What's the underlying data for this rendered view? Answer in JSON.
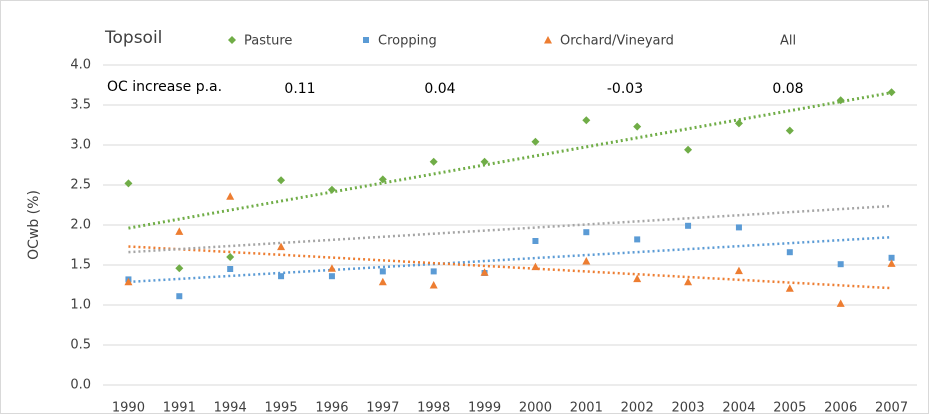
{
  "chart_data": {
    "type": "scatter",
    "title": "Topsoil",
    "y_label": "OCwb (%)",
    "annotation": "OC increase p.a.",
    "categories": [
      "1990",
      "1991",
      "1994",
      "1995",
      "1996",
      "1997",
      "1998",
      "1999",
      "2000",
      "2001",
      "2002",
      "2003",
      "2004",
      "2005",
      "2006",
      "2007"
    ],
    "series": [
      {
        "name": "Pasture",
        "color": "#70ad47",
        "marker": "diamond",
        "rate": 0.11,
        "values": [
          2.52,
          1.46,
          1.6,
          2.56,
          2.44,
          2.57,
          2.79,
          2.79,
          3.04,
          3.31,
          3.23,
          2.94,
          3.27,
          3.18,
          3.56,
          3.66
        ]
      },
      {
        "name": "Cropping",
        "color": "#5b9bd5",
        "marker": "square",
        "rate": 0.04,
        "values": [
          1.32,
          1.11,
          1.45,
          1.36,
          1.36,
          1.42,
          1.42,
          1.4,
          1.8,
          1.91,
          1.82,
          1.99,
          1.97,
          1.66,
          1.51,
          1.59
        ]
      },
      {
        "name": "Orchard/Vineyard",
        "color": "#ed7d31",
        "marker": "triangle",
        "rate": -0.03,
        "values": [
          1.29,
          1.92,
          2.36,
          1.73,
          1.46,
          1.29,
          1.25,
          1.41,
          1.48,
          1.55,
          1.33,
          1.29,
          1.43,
          1.21,
          1.02,
          1.52
        ]
      },
      {
        "name": "All",
        "color": "#a5a5a5",
        "rate": 0.08
      }
    ],
    "ylim": [
      0,
      4
    ],
    "yticks": [
      {
        "value": 0,
        "label": "0.0"
      },
      {
        "value": 0.5,
        "label": "0.5"
      },
      {
        "value": 1,
        "label": "1.0"
      },
      {
        "value": 1.5,
        "label": "1.5"
      },
      {
        "value": 2,
        "label": "2.0"
      },
      {
        "value": 2.5,
        "label": "2.5"
      },
      {
        "value": 3,
        "label": "3.0"
      },
      {
        "value": 3.5,
        "label": "3.5"
      },
      {
        "value": 4,
        "label": "4.0"
      }
    ],
    "grid": true,
    "trendlines": true
  }
}
